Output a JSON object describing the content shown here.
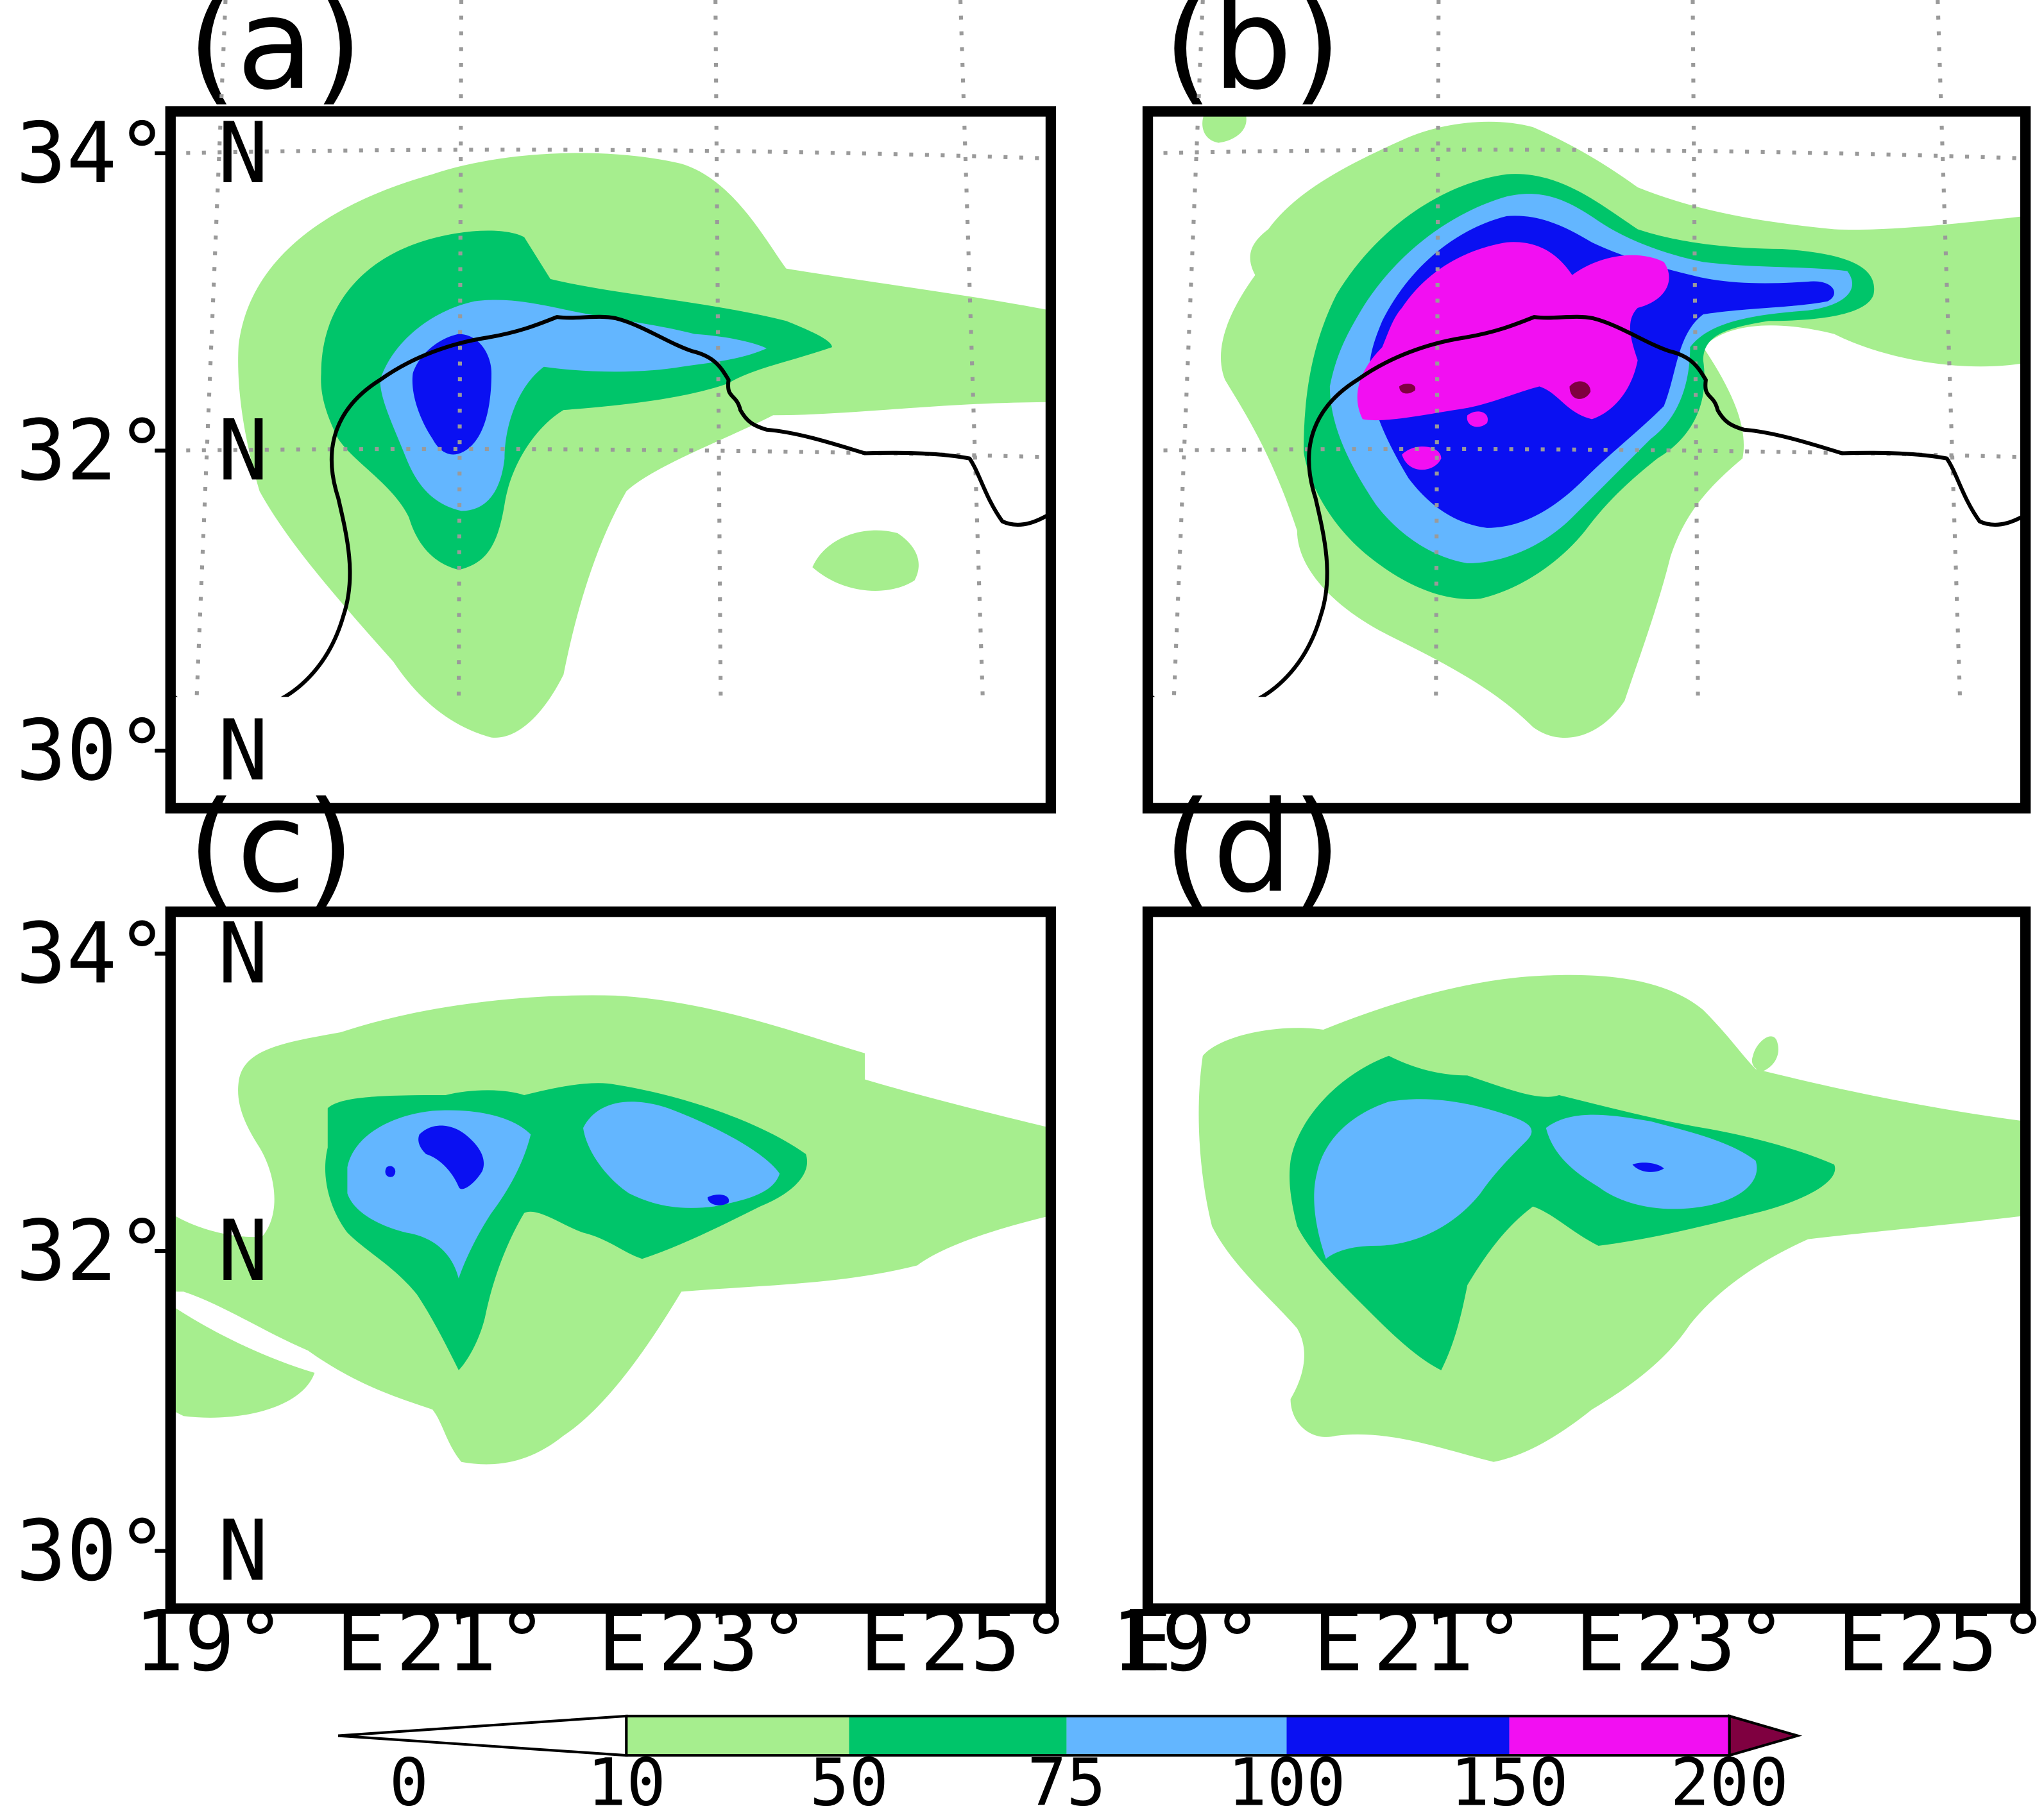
{
  "figure": {
    "colors": {
      "c10_50": "#a6ee8e",
      "c50_75": "#00c56a",
      "c75_100": "#63b6ff",
      "c100_150": "#0a10f2",
      "c150_200": "#f20ff2",
      "c200_plus": "#7f0040",
      "coastline": "#000000",
      "grid": "#9a9a9a"
    },
    "colorbar": {
      "levels": [
        "0",
        "10",
        "50",
        "75",
        "100",
        "150",
        "200"
      ]
    }
  },
  "panels": [
    {
      "label": "(a)",
      "lat_labels": [
        "34° N",
        "32° N",
        "30° N"
      ],
      "lon_labels": []
    },
    {
      "label": "(b)",
      "lat_labels": [],
      "lon_labels": []
    },
    {
      "label": "(c)",
      "lat_labels": [
        "34° N",
        "32° N",
        "30° N"
      ],
      "lon_labels": [
        "19° E",
        "21° E",
        "23° E",
        "25° E"
      ]
    },
    {
      "label": "(d)",
      "lat_labels": [],
      "lon_labels": [
        "19° E",
        "21° E",
        "23° E",
        "25° E"
      ]
    }
  ]
}
